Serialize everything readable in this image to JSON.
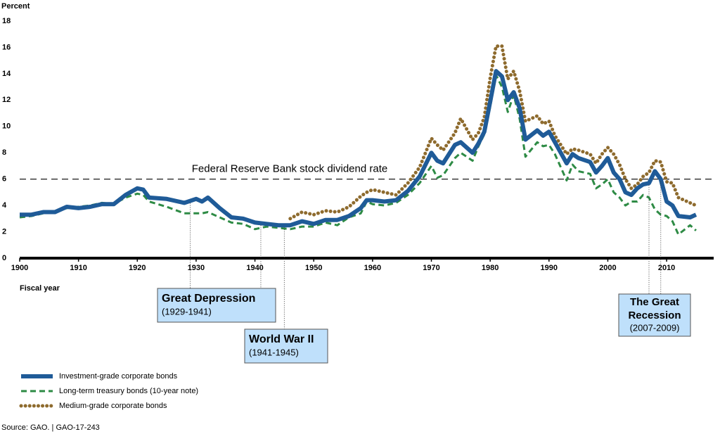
{
  "chart_data": {
    "type": "line",
    "y_label": "Percent",
    "x_label": "Fiscal year",
    "source": "Source: GAO.  |  GAO-17-243",
    "xlim": [
      1900,
      2018
    ],
    "xticks": [
      1900,
      1910,
      1920,
      1930,
      1940,
      1950,
      1960,
      1970,
      1980,
      1990,
      2000,
      2010
    ],
    "ylim": [
      0,
      18
    ],
    "yticks": [
      0,
      2,
      4,
      6,
      8,
      10,
      12,
      14,
      16,
      18
    ],
    "x": [
      1900,
      1902,
      1904,
      1906,
      1908,
      1910,
      1912,
      1914,
      1916,
      1918,
      1920,
      1921,
      1922,
      1925,
      1928,
      1930,
      1931,
      1932,
      1934,
      1936,
      1938,
      1940,
      1942,
      1944,
      1946,
      1948,
      1950,
      1952,
      1954,
      1956,
      1958,
      1959,
      1960,
      1962,
      1964,
      1966,
      1968,
      1970,
      1971,
      1972,
      1974,
      1975,
      1976,
      1977,
      1978,
      1979,
      1980,
      1981,
      1982,
      1983,
      1984,
      1985,
      1986,
      1988,
      1989,
      1990,
      1991,
      1993,
      1994,
      1995,
      1997,
      1998,
      1999,
      2000,
      2001,
      2002,
      2003,
      2004,
      2005,
      2006,
      2007,
      2008,
      2009,
      2010,
      2011,
      2012,
      2014,
      2015
    ],
    "series": [
      {
        "name": "Investment-grade corporate bonds",
        "color": "#1f5b98",
        "style": "solid",
        "values": [
          3.3,
          3.3,
          3.5,
          3.5,
          3.9,
          3.8,
          3.9,
          4.1,
          4.1,
          4.8,
          5.3,
          5.2,
          4.6,
          4.5,
          4.2,
          4.5,
          4.3,
          4.6,
          3.8,
          3.1,
          3.0,
          2.7,
          2.6,
          2.5,
          2.5,
          2.8,
          2.6,
          2.9,
          2.9,
          3.2,
          3.8,
          4.4,
          4.4,
          4.3,
          4.4,
          5.1,
          6.2,
          8.0,
          7.4,
          7.2,
          8.6,
          8.8,
          8.4,
          8.0,
          8.7,
          9.6,
          11.9,
          14.2,
          13.8,
          12.0,
          12.6,
          11.4,
          9.0,
          9.7,
          9.3,
          9.6,
          8.8,
          7.2,
          7.9,
          7.6,
          7.3,
          6.5,
          7.0,
          7.6,
          6.5,
          6.0,
          5.0,
          4.8,
          5.3,
          5.6,
          5.7,
          6.6,
          6.0,
          4.3,
          4.0,
          3.2,
          3.1,
          3.3
        ]
      },
      {
        "name": "Long-term treasury bonds (10-year note)",
        "color": "#2e8b45",
        "style": "dashed",
        "values": [
          3.1,
          3.2,
          3.4,
          3.5,
          3.8,
          3.9,
          4.0,
          4.2,
          4.1,
          4.6,
          4.9,
          4.8,
          4.3,
          3.9,
          3.4,
          3.4,
          3.4,
          3.5,
          3.1,
          2.7,
          2.6,
          2.2,
          2.4,
          2.3,
          2.2,
          2.4,
          2.4,
          2.7,
          2.5,
          3.1,
          3.4,
          4.3,
          4.1,
          4.0,
          4.2,
          4.8,
          5.7,
          7.0,
          6.1,
          6.3,
          7.6,
          8.0,
          7.7,
          7.4,
          8.5,
          9.4,
          11.5,
          13.9,
          13.0,
          11.1,
          12.4,
          10.6,
          7.7,
          8.8,
          8.5,
          8.6,
          7.9,
          5.9,
          7.1,
          6.6,
          6.4,
          5.3,
          5.6,
          6.0,
          5.0,
          4.6,
          4.0,
          4.3,
          4.3,
          4.8,
          4.6,
          3.7,
          3.3,
          3.2,
          2.8,
          1.8,
          2.5,
          2.1
        ]
      },
      {
        "name": "Medium-grade corporate bonds",
        "color": "#8e6b2e",
        "style": "dotted",
        "values": [
          null,
          null,
          null,
          null,
          null,
          null,
          null,
          null,
          null,
          null,
          null,
          null,
          null,
          null,
          null,
          null,
          null,
          null,
          null,
          null,
          null,
          null,
          null,
          null,
          3.0,
          3.5,
          3.3,
          3.6,
          3.5,
          3.9,
          4.7,
          5.0,
          5.2,
          5.0,
          4.8,
          5.7,
          6.9,
          9.1,
          8.6,
          8.2,
          9.5,
          10.6,
          9.8,
          9.0,
          9.5,
          10.7,
          13.7,
          16.1,
          16.1,
          13.6,
          14.2,
          12.7,
          10.4,
          10.8,
          10.2,
          10.4,
          9.3,
          7.9,
          8.3,
          8.2,
          7.9,
          7.2,
          7.9,
          8.4,
          7.9,
          7.1,
          6.0,
          5.3,
          5.6,
          6.2,
          6.5,
          7.4,
          7.3,
          5.8,
          5.7,
          4.6,
          4.2,
          4.0
        ]
      }
    ],
    "reference_line": {
      "value": 6,
      "label": "Federal Reserve Bank stock dividend rate"
    },
    "annotations": [
      {
        "title": "Great Depression",
        "subtitle": "(1929-1941)",
        "years": [
          1929,
          1941
        ]
      },
      {
        "title": "World War II",
        "subtitle": "(1941-1945)",
        "years": [
          1945
        ]
      },
      {
        "title": "The Great Recession",
        "subtitle": "(2007-2009)",
        "years": [
          2007,
          2009
        ]
      }
    ]
  }
}
